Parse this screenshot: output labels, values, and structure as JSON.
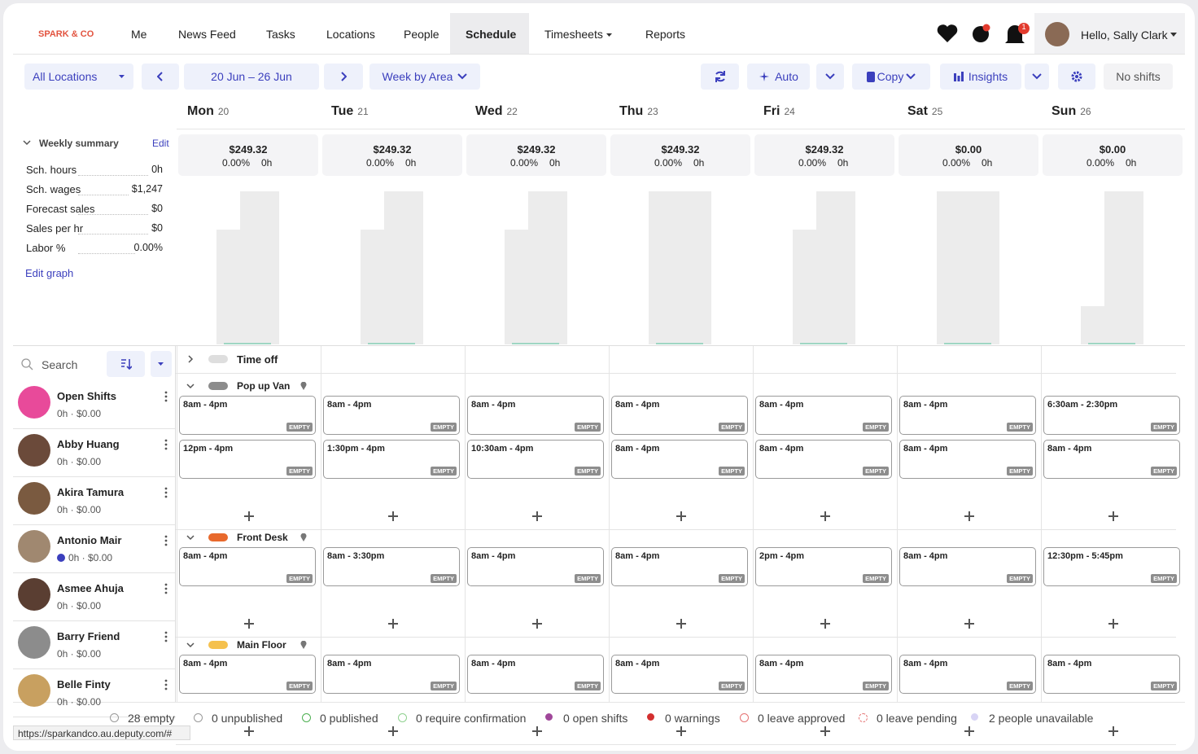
{
  "nav": {
    "brand": "SPARK & CO",
    "items": [
      "Me",
      "News Feed",
      "Tasks",
      "Locations",
      "People",
      "Schedule",
      "Timesheets",
      "Reports"
    ],
    "notifications": "1",
    "greeting": "Hello, Sally Clark"
  },
  "toolbar": {
    "location": "All Locations",
    "date_range": "20 Jun – 26 Jun",
    "view": "Week by Area",
    "auto": "Auto",
    "copy": "Copy",
    "insights": "Insights",
    "no_shifts": "No shifts"
  },
  "days": [
    {
      "name": "Mon",
      "date": "20",
      "cost": "$249.32",
      "percent": "0.00%",
      "hours": "0h"
    },
    {
      "name": "Tue",
      "date": "21",
      "cost": "$249.32",
      "percent": "0.00%",
      "hours": "0h"
    },
    {
      "name": "Wed",
      "date": "22",
      "cost": "$249.32",
      "percent": "0.00%",
      "hours": "0h"
    },
    {
      "name": "Thu",
      "date": "23",
      "cost": "$249.32",
      "percent": "0.00%",
      "hours": "0h"
    },
    {
      "name": "Fri",
      "date": "24",
      "cost": "$249.32",
      "percent": "0.00%",
      "hours": "0h"
    },
    {
      "name": "Sat",
      "date": "25",
      "cost": "$0.00",
      "percent": "0.00%",
      "hours": "0h"
    },
    {
      "name": "Sun",
      "date": "26",
      "cost": "$0.00",
      "percent": "0.00%",
      "hours": "0h"
    }
  ],
  "summary": {
    "title": "Weekly summary",
    "edit": "Edit",
    "rows": [
      [
        "Sch. hours",
        "0h"
      ],
      [
        "Sch. wages",
        "$1,247"
      ],
      [
        "Forecast sales",
        "$0"
      ],
      [
        "Sales per hr",
        "$0"
      ],
      [
        "Labor %",
        "0.00%"
      ]
    ],
    "edit_graph": "Edit graph"
  },
  "search": "Search",
  "people": [
    {
      "name": "Open Shifts",
      "stats": "0h · $0.00"
    },
    {
      "name": "Abby Huang",
      "stats": "0h · $0.00"
    },
    {
      "name": "Akira Tamura",
      "stats": "0h · $0.00"
    },
    {
      "name": "Antonio Mair",
      "stats": "0h · $0.00"
    },
    {
      "name": "Asmee Ahuja",
      "stats": "0h · $0.00"
    },
    {
      "name": "Barry Friend",
      "stats": "0h · $0.00"
    },
    {
      "name": "Belle Finty",
      "stats": "0h · $0.00"
    }
  ],
  "time_off": "Time off",
  "empty_label": "EMPTY",
  "areas": [
    {
      "name": "Pop up Van",
      "color": "#8c8c8c",
      "shift_rows": [
        [
          "8am - 4pm",
          "8am - 4pm",
          "8am - 4pm",
          "8am - 4pm",
          "8am - 4pm",
          "8am - 4pm",
          "6:30am - 2:30pm"
        ],
        [
          "12pm - 4pm",
          "1:30pm - 4pm",
          "10:30am - 4pm",
          "8am - 4pm",
          "8am - 4pm",
          "8am - 4pm",
          "8am - 4pm"
        ]
      ]
    },
    {
      "name": "Front Desk",
      "color": "#e8692c",
      "shift_rows": [
        [
          "8am - 4pm",
          "8am - 3:30pm",
          "8am - 4pm",
          "8am - 4pm",
          "2pm - 4pm",
          "8am - 4pm",
          "12:30pm - 5:45pm"
        ]
      ]
    },
    {
      "name": "Main Floor",
      "color": "#f5c14e",
      "shift_rows": [
        [
          "8am - 4pm",
          "8am - 4pm",
          "8am - 4pm",
          "8am - 4pm",
          "8am - 4pm",
          "8am - 4pm",
          "8am - 4pm"
        ]
      ]
    }
  ],
  "status": [
    "28 empty",
    "0 unpublished",
    "0 published",
    "0 require confirmation",
    "0 open shifts",
    "0 warnings",
    "0 leave approved",
    "0 leave pending",
    "2 people unavailable"
  ],
  "url": "https://sparkandco.au.deputy.com/#"
}
